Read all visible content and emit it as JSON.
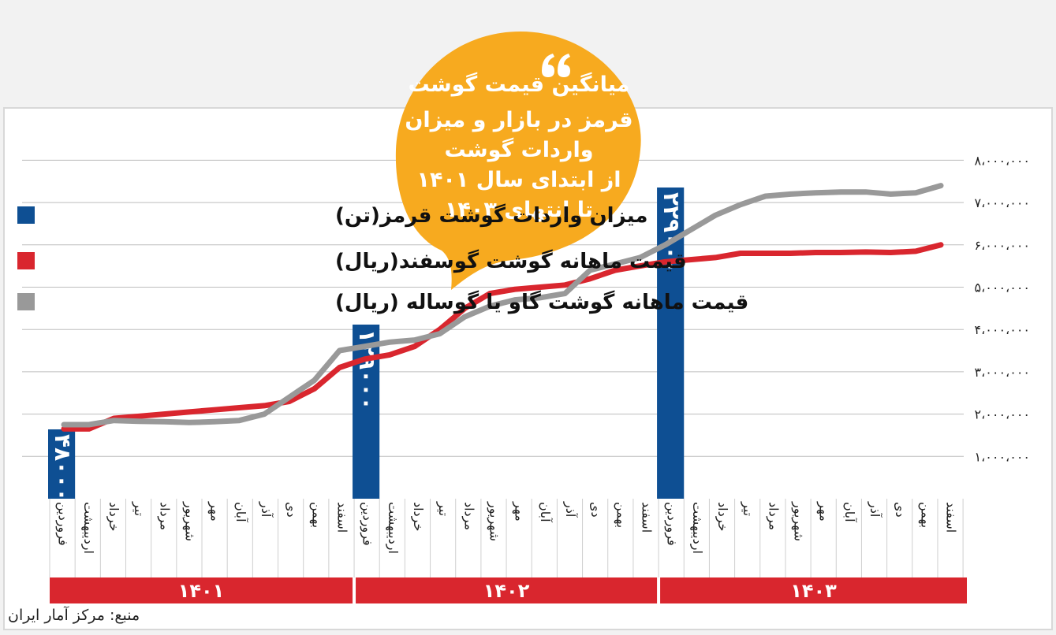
{
  "source": "منبع: مرکز آمار ایران",
  "colors": {
    "imports": "#0e4f93",
    "sheep": "#d9262e",
    "beef": "#999999",
    "bubble": "#f7aa1f",
    "grid": "#bdbdbd"
  },
  "bubble": {
    "quote_icon": "quote-icon",
    "lines": [
      "میانگین قیمت گوشت",
      "قرمز در بازار و میزان",
      "واردات گوشت",
      "از ابتدای سال ۱۴۰۱",
      "تا انتهای ۱۴۰۳"
    ]
  },
  "chart_data": {
    "type": "line",
    "y_axis": {
      "min": 0,
      "max": 8000000,
      "ticks": [
        1000000,
        2000000,
        3000000,
        4000000,
        5000000,
        6000000,
        7000000,
        8000000
      ],
      "tick_labels": [
        "۱،۰۰۰،۰۰۰",
        "۲،۰۰۰،۰۰۰",
        "۳،۰۰۰،۰۰۰",
        "۴،۰۰۰،۰۰۰",
        "۵،۰۰۰،۰۰۰",
        "۶،۰۰۰،۰۰۰",
        "۷،۰۰۰،۰۰۰",
        "۸،۰۰۰،۰۰۰"
      ],
      "grid": true
    },
    "months": [
      "فروردین",
      "اردیبهشت",
      "خرداد",
      "تیر",
      "مرداد",
      "شهریور",
      "مهر",
      "آبان",
      "آذر",
      "دی",
      "بهمن",
      "اسفند"
    ],
    "years": [
      "۱۴۰۱",
      "۱۴۰۲",
      "۱۴۰۳"
    ],
    "legend": [
      {
        "key": "imports",
        "label": "میزان واردات گوشت قرمز(تن)"
      },
      {
        "key": "sheep",
        "label": "قیمت ماهانه گوشت گوسفند(ریال)"
      },
      {
        "key": "beef",
        "label": "قیمت ماهانه گوشت گاو یا گوساله (ریال)"
      }
    ],
    "series": [
      {
        "key": "sheep",
        "values": [
          1650000,
          1650000,
          1900000,
          1950000,
          2000000,
          2050000,
          2100000,
          2150000,
          2200000,
          2300000,
          2600000,
          3100000,
          3300000,
          3400000,
          3600000,
          4000000,
          4500000,
          4850000,
          4950000,
          5000000,
          5050000,
          5200000,
          5400000,
          5500000,
          5600000,
          5650000,
          5700000,
          5800000,
          5800000,
          5800000,
          5820000,
          5820000,
          5830000,
          5820000,
          5850000,
          6000000
        ]
      },
      {
        "key": "beef",
        "values": [
          1750000,
          1750000,
          1850000,
          1830000,
          1820000,
          1800000,
          1820000,
          1850000,
          2000000,
          2400000,
          2800000,
          3500000,
          3600000,
          3700000,
          3750000,
          3900000,
          4300000,
          4550000,
          4700000,
          4750000,
          4850000,
          5400000,
          5550000,
          5700000,
          6000000,
          6350000,
          6700000,
          6950000,
          7150000,
          7200000,
          7230000,
          7250000,
          7250000,
          7200000,
          7230000,
          7400000
        ]
      }
    ],
    "bars": [
      {
        "key": "imports",
        "month_index": 0,
        "value": 48000,
        "label": "۴۸۰۰۰"
      },
      {
        "key": "imports",
        "month_index": 12,
        "value": 129000,
        "label": "۱۲۹۰۰۰"
      },
      {
        "key": "imports",
        "month_index": 24,
        "value": 229000,
        "label": "۲۲۹۰۰۰"
      }
    ]
  }
}
